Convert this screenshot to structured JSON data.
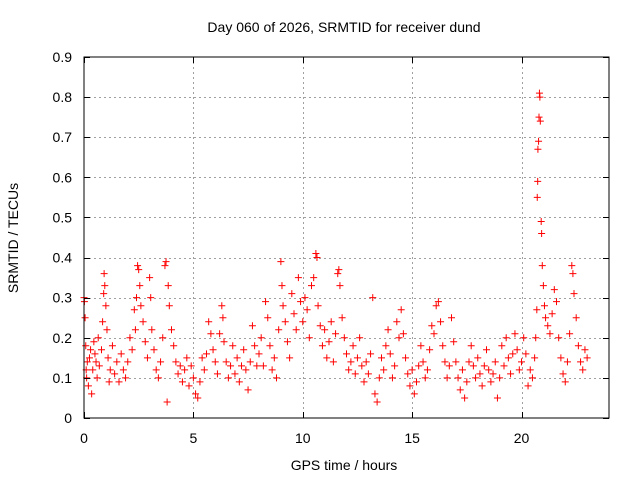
{
  "chart_data": {
    "type": "scatter",
    "title": "Day 060 of 2026, SRMTID for receiver dund",
    "xlabel": "GPS time / hours",
    "ylabel": "SRMTID / TECUs",
    "xlim": [
      0,
      24
    ],
    "ylim": [
      0,
      0.9
    ],
    "xticks": [
      0,
      5,
      10,
      15,
      20
    ],
    "xtick_labels": [
      "0",
      "5",
      "10",
      "15",
      "20"
    ],
    "yticks": [
      0,
      0.1,
      0.2,
      0.3,
      0.4,
      0.5,
      0.6,
      0.7,
      0.8,
      0.9
    ],
    "ytick_labels": [
      "0",
      "0.1",
      "0.2",
      "0.3",
      "0.4",
      "0.5",
      "0.6",
      "0.7",
      "0.8",
      "0.9"
    ],
    "grid": true,
    "marker": "+",
    "color": "#ff0000",
    "series": [
      {
        "name": "SRMTID",
        "points": [
          [
            0.0,
            0.3
          ],
          [
            0.02,
            0.29
          ],
          [
            0.05,
            0.25
          ],
          [
            0.08,
            0.18
          ],
          [
            0.1,
            0.12
          ],
          [
            0.12,
            0.1
          ],
          [
            0.15,
            0.14
          ],
          [
            0.2,
            0.08
          ],
          [
            0.25,
            0.15
          ],
          [
            0.3,
            0.17
          ],
          [
            0.35,
            0.06
          ],
          [
            0.4,
            0.12
          ],
          [
            0.45,
            0.19
          ],
          [
            0.5,
            0.16
          ],
          [
            0.55,
            0.14
          ],
          [
            0.6,
            0.1
          ],
          [
            0.65,
            0.2
          ],
          [
            0.7,
            0.13
          ],
          [
            0.8,
            0.17
          ],
          [
            0.85,
            0.24
          ],
          [
            0.9,
            0.31
          ],
          [
            0.92,
            0.36
          ],
          [
            0.95,
            0.33
          ],
          [
            1.0,
            0.28
          ],
          [
            1.05,
            0.22
          ],
          [
            1.1,
            0.15
          ],
          [
            1.15,
            0.09
          ],
          [
            1.2,
            0.12
          ],
          [
            1.3,
            0.18
          ],
          [
            1.4,
            0.11
          ],
          [
            1.5,
            0.14
          ],
          [
            1.6,
            0.09
          ],
          [
            1.7,
            0.16
          ],
          [
            1.8,
            0.12
          ],
          [
            1.9,
            0.1
          ],
          [
            2.0,
            0.14
          ],
          [
            2.1,
            0.2
          ],
          [
            2.2,
            0.17
          ],
          [
            2.3,
            0.27
          ],
          [
            2.35,
            0.22
          ],
          [
            2.4,
            0.3
          ],
          [
            2.45,
            0.38
          ],
          [
            2.5,
            0.37
          ],
          [
            2.55,
            0.33
          ],
          [
            2.6,
            0.28
          ],
          [
            2.7,
            0.24
          ],
          [
            2.8,
            0.19
          ],
          [
            2.9,
            0.15
          ],
          [
            3.0,
            0.35
          ],
          [
            3.05,
            0.3
          ],
          [
            3.1,
            0.22
          ],
          [
            3.2,
            0.17
          ],
          [
            3.3,
            0.12
          ],
          [
            3.4,
            0.1
          ],
          [
            3.5,
            0.14
          ],
          [
            3.6,
            0.2
          ],
          [
            3.7,
            0.38
          ],
          [
            3.75,
            0.39
          ],
          [
            3.8,
            0.04
          ],
          [
            3.85,
            0.33
          ],
          [
            3.9,
            0.28
          ],
          [
            4.0,
            0.22
          ],
          [
            4.1,
            0.18
          ],
          [
            4.2,
            0.14
          ],
          [
            4.3,
            0.11
          ],
          [
            4.4,
            0.13
          ],
          [
            4.5,
            0.09
          ],
          [
            4.6,
            0.12
          ],
          [
            4.7,
            0.15
          ],
          [
            4.8,
            0.08
          ],
          [
            4.9,
            0.13
          ],
          [
            5.0,
            0.1
          ],
          [
            5.1,
            0.06
          ],
          [
            5.2,
            0.05
          ],
          [
            5.3,
            0.09
          ],
          [
            5.4,
            0.15
          ],
          [
            5.5,
            0.12
          ],
          [
            5.6,
            0.16
          ],
          [
            5.7,
            0.24
          ],
          [
            5.8,
            0.21
          ],
          [
            5.9,
            0.17
          ],
          [
            6.0,
            0.14
          ],
          [
            6.1,
            0.11
          ],
          [
            6.2,
            0.21
          ],
          [
            6.3,
            0.28
          ],
          [
            6.35,
            0.25
          ],
          [
            6.4,
            0.19
          ],
          [
            6.5,
            0.14
          ],
          [
            6.6,
            0.1
          ],
          [
            6.7,
            0.13
          ],
          [
            6.8,
            0.18
          ],
          [
            6.9,
            0.11
          ],
          [
            7.0,
            0.15
          ],
          [
            7.1,
            0.09
          ],
          [
            7.2,
            0.13
          ],
          [
            7.3,
            0.17
          ],
          [
            7.4,
            0.12
          ],
          [
            7.5,
            0.07
          ],
          [
            7.6,
            0.14
          ],
          [
            7.7,
            0.23
          ],
          [
            7.8,
            0.18
          ],
          [
            7.9,
            0.13
          ],
          [
            8.0,
            0.16
          ],
          [
            8.1,
            0.2
          ],
          [
            8.2,
            0.13
          ],
          [
            8.3,
            0.29
          ],
          [
            8.4,
            0.25
          ],
          [
            8.5,
            0.18
          ],
          [
            8.6,
            0.12
          ],
          [
            8.7,
            0.15
          ],
          [
            8.8,
            0.1
          ],
          [
            8.9,
            0.22
          ],
          [
            9.0,
            0.39
          ],
          [
            9.05,
            0.33
          ],
          [
            9.1,
            0.28
          ],
          [
            9.2,
            0.24
          ],
          [
            9.3,
            0.19
          ],
          [
            9.4,
            0.15
          ],
          [
            9.5,
            0.31
          ],
          [
            9.6,
            0.26
          ],
          [
            9.7,
            0.22
          ],
          [
            9.8,
            0.35
          ],
          [
            9.9,
            0.29
          ],
          [
            10.0,
            0.24
          ],
          [
            10.1,
            0.3
          ],
          [
            10.2,
            0.27
          ],
          [
            10.3,
            0.2
          ],
          [
            10.4,
            0.33
          ],
          [
            10.5,
            0.35
          ],
          [
            10.6,
            0.41
          ],
          [
            10.65,
            0.4
          ],
          [
            10.7,
            0.28
          ],
          [
            10.8,
            0.23
          ],
          [
            10.9,
            0.18
          ],
          [
            11.0,
            0.22
          ],
          [
            11.1,
            0.15
          ],
          [
            11.2,
            0.19
          ],
          [
            11.3,
            0.24
          ],
          [
            11.4,
            0.14
          ],
          [
            11.5,
            0.21
          ],
          [
            11.6,
            0.36
          ],
          [
            11.65,
            0.37
          ],
          [
            11.7,
            0.33
          ],
          [
            11.8,
            0.25
          ],
          [
            11.9,
            0.2
          ],
          [
            12.0,
            0.16
          ],
          [
            12.1,
            0.12
          ],
          [
            12.2,
            0.14
          ],
          [
            12.3,
            0.18
          ],
          [
            12.4,
            0.11
          ],
          [
            12.5,
            0.15
          ],
          [
            12.6,
            0.2
          ],
          [
            12.7,
            0.13
          ],
          [
            12.8,
            0.09
          ],
          [
            12.9,
            0.14
          ],
          [
            13.0,
            0.11
          ],
          [
            13.1,
            0.16
          ],
          [
            13.2,
            0.3
          ],
          [
            13.3,
            0.06
          ],
          [
            13.4,
            0.04
          ],
          [
            13.5,
            0.1
          ],
          [
            13.6,
            0.15
          ],
          [
            13.7,
            0.12
          ],
          [
            13.8,
            0.18
          ],
          [
            13.9,
            0.22
          ],
          [
            14.0,
            0.16
          ],
          [
            14.1,
            0.1
          ],
          [
            14.2,
            0.13
          ],
          [
            14.3,
            0.24
          ],
          [
            14.4,
            0.2
          ],
          [
            14.5,
            0.27
          ],
          [
            14.6,
            0.21
          ],
          [
            14.7,
            0.15
          ],
          [
            14.8,
            0.11
          ],
          [
            14.9,
            0.08
          ],
          [
            15.0,
            0.12
          ],
          [
            15.1,
            0.06
          ],
          [
            15.2,
            0.09
          ],
          [
            15.3,
            0.13
          ],
          [
            15.4,
            0.18
          ],
          [
            15.5,
            0.14
          ],
          [
            15.6,
            0.1
          ],
          [
            15.7,
            0.12
          ],
          [
            15.8,
            0.17
          ],
          [
            15.9,
            0.23
          ],
          [
            16.0,
            0.21
          ],
          [
            16.1,
            0.28
          ],
          [
            16.2,
            0.29
          ],
          [
            16.3,
            0.24
          ],
          [
            16.4,
            0.18
          ],
          [
            16.5,
            0.14
          ],
          [
            16.6,
            0.1
          ],
          [
            16.7,
            0.13
          ],
          [
            16.8,
            0.25
          ],
          [
            16.9,
            0.19
          ],
          [
            17.0,
            0.14
          ],
          [
            17.1,
            0.1
          ],
          [
            17.2,
            0.07
          ],
          [
            17.3,
            0.12
          ],
          [
            17.4,
            0.05
          ],
          [
            17.5,
            0.09
          ],
          [
            17.6,
            0.14
          ],
          [
            17.7,
            0.18
          ],
          [
            17.8,
            0.13
          ],
          [
            17.9,
            0.1
          ],
          [
            18.0,
            0.15
          ],
          [
            18.1,
            0.11
          ],
          [
            18.2,
            0.08
          ],
          [
            18.3,
            0.13
          ],
          [
            18.4,
            0.17
          ],
          [
            18.5,
            0.12
          ],
          [
            18.6,
            0.09
          ],
          [
            18.7,
            0.11
          ],
          [
            18.8,
            0.14
          ],
          [
            18.9,
            0.05
          ],
          [
            19.0,
            0.1
          ],
          [
            19.1,
            0.18
          ],
          [
            19.2,
            0.13
          ],
          [
            19.3,
            0.2
          ],
          [
            19.4,
            0.15
          ],
          [
            19.5,
            0.11
          ],
          [
            19.6,
            0.16
          ],
          [
            19.7,
            0.21
          ],
          [
            19.8,
            0.17
          ],
          [
            19.9,
            0.12
          ],
          [
            20.0,
            0.14
          ],
          [
            20.1,
            0.2
          ],
          [
            20.2,
            0.16
          ],
          [
            20.3,
            0.08
          ],
          [
            20.4,
            0.12
          ],
          [
            20.5,
            0.1
          ],
          [
            20.6,
            0.15
          ],
          [
            20.65,
            0.2
          ],
          [
            20.7,
            0.27
          ],
          [
            20.72,
            0.55
          ],
          [
            20.74,
            0.59
          ],
          [
            20.75,
            0.67
          ],
          [
            20.78,
            0.69
          ],
          [
            20.8,
            0.75
          ],
          [
            20.82,
            0.81
          ],
          [
            20.84,
            0.8
          ],
          [
            20.86,
            0.74
          ],
          [
            20.9,
            0.49
          ],
          [
            20.92,
            0.46
          ],
          [
            20.95,
            0.38
          ],
          [
            21.0,
            0.33
          ],
          [
            21.05,
            0.28
          ],
          [
            21.1,
            0.25
          ],
          [
            21.2,
            0.23
          ],
          [
            21.3,
            0.21
          ],
          [
            21.4,
            0.26
          ],
          [
            21.5,
            0.32
          ],
          [
            21.6,
            0.29
          ],
          [
            21.7,
            0.2
          ],
          [
            21.8,
            0.15
          ],
          [
            21.9,
            0.11
          ],
          [
            22.0,
            0.09
          ],
          [
            22.1,
            0.14
          ],
          [
            22.2,
            0.21
          ],
          [
            22.3,
            0.38
          ],
          [
            22.35,
            0.36
          ],
          [
            22.4,
            0.31
          ],
          [
            22.5,
            0.25
          ],
          [
            22.6,
            0.18
          ],
          [
            22.7,
            0.14
          ],
          [
            22.8,
            0.12
          ],
          [
            22.9,
            0.17
          ],
          [
            23.0,
            0.15
          ]
        ]
      }
    ]
  }
}
